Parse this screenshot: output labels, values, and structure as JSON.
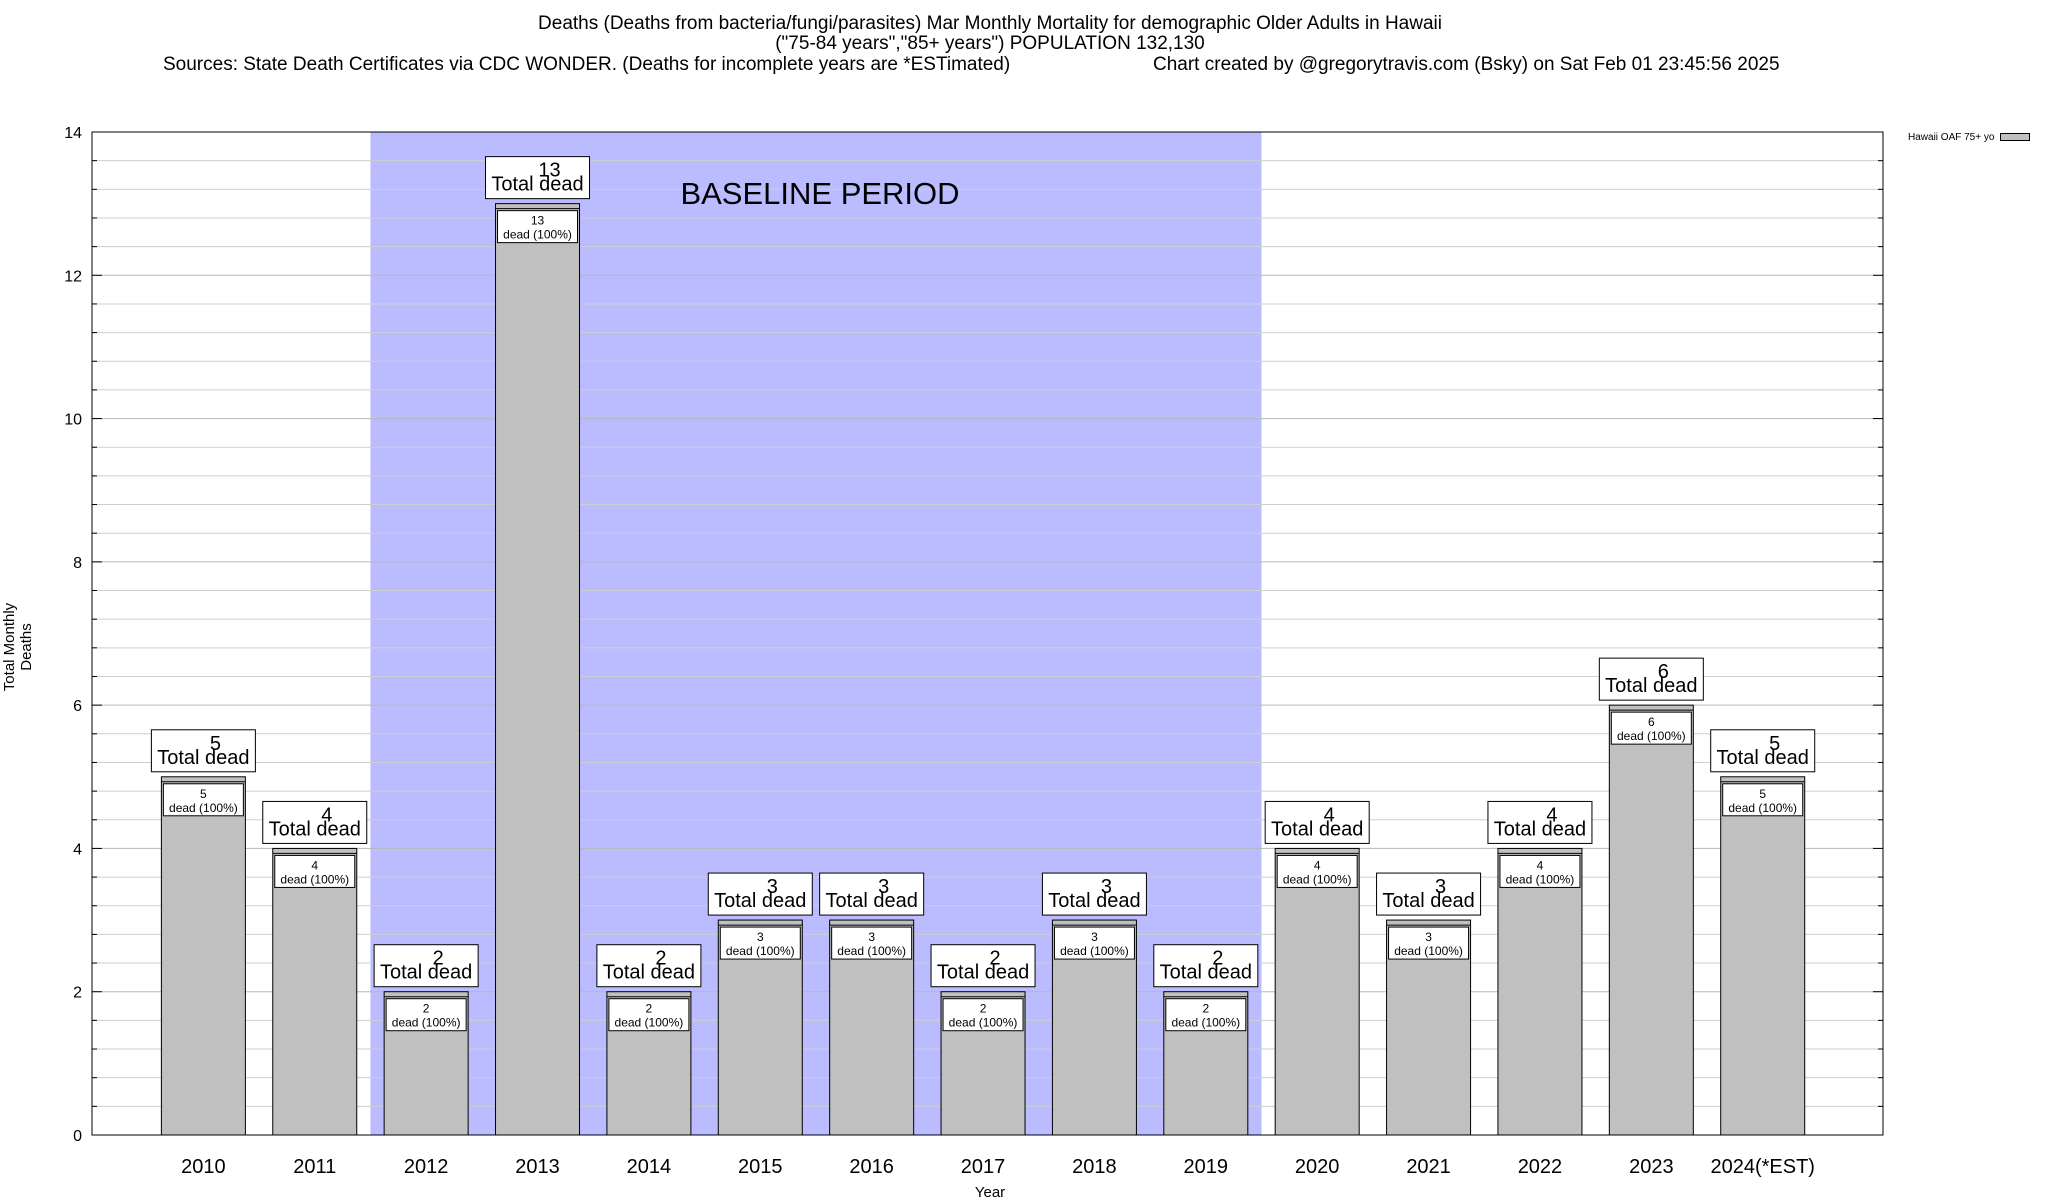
{
  "header": {
    "title_line1": "Deaths (Deaths from bacteria/fungi/parasites) Mar Monthly Mortality for demographic Older Adults in Hawaii",
    "title_line2": "(\"75-84 years\",\"85+ years\") POPULATION 132,130",
    "sources": "Sources: State Death Certificates via CDC WONDER. (Deaths for incomplete years are *ESTimated)",
    "credit": "Chart created by @gregorytravis.com (Bsky) on Sat Feb 01 23:45:56 2025"
  },
  "chart_data": {
    "type": "bar",
    "categories": [
      "2010",
      "2011",
      "2012",
      "2013",
      "2014",
      "2015",
      "2016",
      "2017",
      "2018",
      "2019",
      "2020",
      "2021",
      "2022",
      "2023",
      "2024(*EST)"
    ],
    "series": [
      {
        "name": "Hawaii OAF 75+ yo",
        "values": [
          5,
          4,
          2,
          13,
          2,
          3,
          3,
          2,
          3,
          2,
          4,
          3,
          4,
          6,
          5
        ]
      }
    ],
    "xlabel": "Year",
    "ylabel": "Total Monthly Deaths",
    "ylim": [
      0,
      14
    ],
    "yticks": [
      "0",
      "2",
      "4",
      "6",
      "8",
      "10",
      "12",
      "14"
    ],
    "grid": true,
    "legend_position": "top-right",
    "bar_color": "#c0c0c0",
    "baseline_color": "#bbbbff",
    "baseline_period": {
      "label": "BASELINE PERIOD",
      "from": "2012",
      "to": "2019"
    },
    "total_label_suffix": "Total dead",
    "inner_label_suffix": "dead (100%)"
  }
}
